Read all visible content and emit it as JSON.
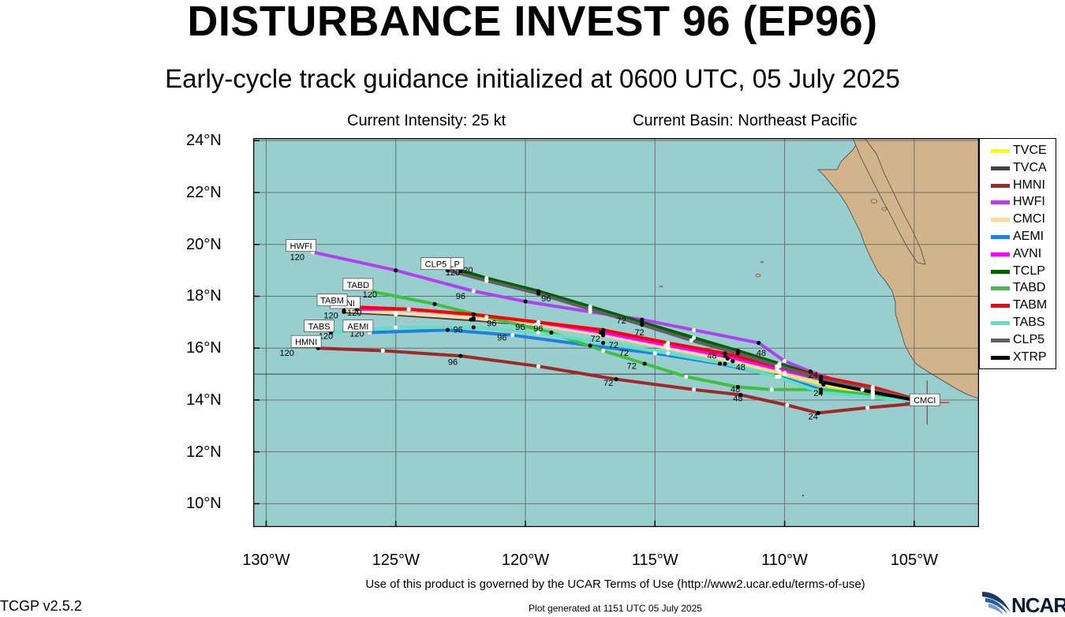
{
  "header": {
    "title": "DISTURBANCE INVEST 96 (EP96)",
    "subtitle": "Early-cycle track guidance initialized at 0600 UTC, 05 July 2025",
    "intensity": "Current Intensity: 25 kt",
    "basin": "Current Basin: Northeast Pacific"
  },
  "axes": {
    "lat_labels": [
      "24°N",
      "22°N",
      "20°N",
      "18°N",
      "16°N",
      "14°N",
      "12°N",
      "10°N"
    ],
    "lat_values": [
      24,
      22,
      20,
      18,
      16,
      14,
      12,
      10
    ],
    "lon_labels": [
      "130°W",
      "125°W",
      "120°W",
      "115°W",
      "110°W",
      "105°W"
    ],
    "lon_values": [
      -130,
      -125,
      -120,
      -115,
      -110,
      -105
    ],
    "lat_range": [
      9.1,
      24.1
    ],
    "lon_range": [
      -130.5,
      -102.5
    ]
  },
  "colors": {
    "ocean": "#99cece",
    "land": "#d1b48c",
    "grid": "#707070"
  },
  "chart_data": {
    "type": "line",
    "x_label": "Longitude",
    "y_label": "Latitude",
    "grid": true,
    "legend_position": "right",
    "initial_position": {
      "lon": -104.5,
      "lat": 13.9,
      "label": "CMCI"
    },
    "series": [
      {
        "name": "TVCE",
        "color": "#ffff00",
        "label": "",
        "points": [
          [
            -104.5,
            13.9
          ],
          [
            -106.6,
            14.2
          ],
          [
            -108.5,
            14.6
          ],
          [
            -110,
            15.0
          ],
          [
            -112,
            15.5
          ],
          [
            -114.5,
            16.0
          ],
          [
            -117,
            16.5
          ],
          [
            -119.5,
            16.9
          ],
          [
            -122,
            17.1
          ],
          [
            -125,
            17.3
          ],
          [
            -127,
            17.4
          ]
        ]
      },
      {
        "name": "TVCA",
        "color": "#404040",
        "label": "",
        "points": [
          [
            -104.5,
            13.9
          ],
          [
            -106.6,
            14.3
          ],
          [
            -108.6,
            14.7
          ],
          [
            -110.2,
            15.1
          ],
          [
            -112.2,
            15.6
          ],
          [
            -114.6,
            16.1
          ],
          [
            -117.1,
            16.6
          ],
          [
            -119.6,
            16.9
          ],
          [
            -122.1,
            17.1
          ],
          [
            -125,
            17.3
          ],
          [
            -127,
            17.4
          ]
        ]
      },
      {
        "name": "HMNI",
        "color": "#a02828",
        "label": "HMNI",
        "points": [
          [
            -104.5,
            13.9
          ],
          [
            -106.8,
            13.7
          ],
          [
            -108.7,
            13.5
          ],
          [
            -109.9,
            13.8
          ],
          [
            -111.7,
            14.2
          ],
          [
            -113.5,
            14.4
          ],
          [
            -116.5,
            14.8
          ],
          [
            -119.5,
            15.3
          ],
          [
            -122.5,
            15.7
          ],
          [
            -125.5,
            15.9
          ],
          [
            -128,
            16.0
          ]
        ]
      },
      {
        "name": "HWFI",
        "color": "#b040f0",
        "label": "HWFI",
        "points": [
          [
            -104.5,
            13.9
          ],
          [
            -107,
            14.4
          ],
          [
            -109,
            15.1
          ],
          [
            -110,
            15.5
          ],
          [
            -111,
            16.2
          ],
          [
            -113.5,
            16.7
          ],
          [
            -115.5,
            17.1
          ],
          [
            -117.5,
            17.4
          ],
          [
            -120,
            17.8
          ],
          [
            -122,
            18.2
          ],
          [
            -125,
            19.0
          ],
          [
            -128.2,
            19.7
          ]
        ]
      },
      {
        "name": "CMCI",
        "color": "#ffd8a8",
        "label": "",
        "points": [
          [
            -104.5,
            13.9
          ],
          [
            -106.6,
            14.25
          ],
          [
            -108.5,
            14.65
          ],
          [
            -110,
            15.05
          ],
          [
            -112,
            15.5
          ],
          [
            -114.5,
            16.0
          ],
          [
            -117,
            16.5
          ],
          [
            -119.5,
            16.9
          ],
          [
            -122,
            17.15
          ],
          [
            -125,
            17.35
          ],
          [
            -127,
            17.45
          ]
        ]
      },
      {
        "name": "AEMI",
        "color": "#2080e0",
        "label": "AEMI",
        "points": [
          [
            -104.5,
            13.9
          ],
          [
            -106.6,
            14.1
          ],
          [
            -108.6,
            14.4
          ],
          [
            -110.2,
            14.9
          ],
          [
            -112.5,
            15.4
          ],
          [
            -115,
            15.8
          ],
          [
            -117.5,
            16.1
          ],
          [
            -120.5,
            16.5
          ],
          [
            -123,
            16.7
          ],
          [
            -126,
            16.6
          ]
        ]
      },
      {
        "name": "AVNI",
        "color": "#ff00ff",
        "label": "AVNI",
        "points": [
          [
            -104.5,
            13.9
          ],
          [
            -106.6,
            14.3
          ],
          [
            -108.6,
            14.8
          ],
          [
            -110.3,
            15.2
          ],
          [
            -112.3,
            15.7
          ],
          [
            -114.5,
            16.1
          ],
          [
            -117,
            16.6
          ],
          [
            -119.5,
            17.0
          ],
          [
            -122,
            17.3
          ],
          [
            -124.5,
            17.5
          ],
          [
            -126.5,
            17.5
          ]
        ]
      },
      {
        "name": "TCLP",
        "color": "#006000",
        "label": "TCLP",
        "points": [
          [
            -104.5,
            13.9
          ],
          [
            -106.6,
            14.4
          ],
          [
            -108.6,
            14.9
          ],
          [
            -110.2,
            15.4
          ],
          [
            -111.8,
            15.9
          ],
          [
            -113.5,
            16.4
          ],
          [
            -115.5,
            17.0
          ],
          [
            -117.5,
            17.6
          ],
          [
            -119.5,
            18.2
          ],
          [
            -121.5,
            18.7
          ],
          [
            -122.5,
            19.0
          ]
        ]
      },
      {
        "name": "TABD",
        "color": "#40c040",
        "label": "TABD",
        "points": [
          [
            -104.5,
            13.9
          ],
          [
            -106.6,
            14.2
          ],
          [
            -108.6,
            14.4
          ],
          [
            -110.5,
            14.4
          ],
          [
            -111.8,
            14.5
          ],
          [
            -113.8,
            14.9
          ],
          [
            -115.4,
            15.4
          ],
          [
            -117,
            15.9
          ],
          [
            -119,
            16.6
          ],
          [
            -121.5,
            17.2
          ],
          [
            -123.5,
            17.7
          ],
          [
            -126,
            18.2
          ]
        ]
      },
      {
        "name": "TABM",
        "color": "#ff0000",
        "label": "TABM",
        "points": [
          [
            -104.5,
            13.9
          ],
          [
            -106.6,
            14.5
          ],
          [
            -108.6,
            14.9
          ],
          [
            -110.3,
            15.3
          ],
          [
            -112.3,
            15.8
          ],
          [
            -114.5,
            16.2
          ],
          [
            -117,
            16.7
          ],
          [
            -119.5,
            17.0
          ],
          [
            -122,
            17.3
          ],
          [
            -124.5,
            17.5
          ],
          [
            -127,
            17.6
          ]
        ]
      },
      {
        "name": "TABS",
        "color": "#60e0c0",
        "label": "TABS",
        "points": [
          [
            -104.5,
            13.9
          ],
          [
            -106.6,
            14.1
          ],
          [
            -108.6,
            14.3
          ],
          [
            -110.3,
            14.9
          ],
          [
            -112.3,
            15.4
          ],
          [
            -114.5,
            15.8
          ],
          [
            -117,
            16.2
          ],
          [
            -119.5,
            16.6
          ],
          [
            -122,
            16.8
          ],
          [
            -125,
            16.8
          ],
          [
            -127.5,
            16.6
          ]
        ]
      },
      {
        "name": "CLP5",
        "color": "#606060",
        "label": "CLP5",
        "points": [
          [
            -104.5,
            13.9
          ],
          [
            -106.6,
            14.4
          ],
          [
            -108.6,
            14.8
          ],
          [
            -110.2,
            15.3
          ],
          [
            -111.8,
            15.8
          ],
          [
            -113.6,
            16.3
          ],
          [
            -115.5,
            16.9
          ],
          [
            -117.5,
            17.5
          ],
          [
            -119.5,
            18.1
          ],
          [
            -121.5,
            18.6
          ],
          [
            -123,
            19.0
          ]
        ]
      },
      {
        "name": "XTRP",
        "color": "#000000",
        "label": "",
        "points": [
          [
            -104.5,
            13.9
          ],
          [
            -106.6,
            14.3
          ],
          [
            -108.6,
            14.7
          ]
        ]
      }
    ],
    "forecast_hour_labels": [
      {
        "text": "24",
        "lon": -108.9,
        "lat": 13.25
      },
      {
        "text": "24",
        "lon": -108.9,
        "lat": 14.85
      },
      {
        "text": "24",
        "lon": -108.7,
        "lat": 14.15
      },
      {
        "text": "48",
        "lon": -111.8,
        "lat": 13.95
      },
      {
        "text": "48",
        "lon": -111.9,
        "lat": 14.3
      },
      {
        "text": "48",
        "lon": -112.8,
        "lat": 15.6
      },
      {
        "text": "48",
        "lon": -111.7,
        "lat": 15.15
      },
      {
        "text": "48",
        "lon": -110.9,
        "lat": 15.7
      },
      {
        "text": "72",
        "lon": -116.8,
        "lat": 14.55
      },
      {
        "text": "72",
        "lon": -115.9,
        "lat": 15.2
      },
      {
        "text": "72",
        "lon": -116.2,
        "lat": 15.7
      },
      {
        "text": "72",
        "lon": -116.6,
        "lat": 16.0
      },
      {
        "text": "72",
        "lon": -117.3,
        "lat": 16.25
      },
      {
        "text": "72",
        "lon": -116.3,
        "lat": 16.95
      },
      {
        "text": "72",
        "lon": -115.6,
        "lat": 16.5
      },
      {
        "text": "96",
        "lon": -122.8,
        "lat": 15.35
      },
      {
        "text": "96",
        "lon": -120.9,
        "lat": 16.3
      },
      {
        "text": "96",
        "lon": -122.6,
        "lat": 16.6
      },
      {
        "text": "96",
        "lon": -120.2,
        "lat": 16.7
      },
      {
        "text": "96",
        "lon": -121.3,
        "lat": 16.85
      },
      {
        "text": "96",
        "lon": -119.5,
        "lat": 16.65
      },
      {
        "text": "96",
        "lon": -122.5,
        "lat": 17.9
      },
      {
        "text": "96",
        "lon": -119.2,
        "lat": 17.8
      },
      {
        "text": "120",
        "lon": -129.2,
        "lat": 15.7
      },
      {
        "text": "120",
        "lon": -127.7,
        "lat": 16.35
      },
      {
        "text": "120",
        "lon": -126.5,
        "lat": 16.45
      },
      {
        "text": "120",
        "lon": -127.5,
        "lat": 17.15
      },
      {
        "text": "120",
        "lon": -126.6,
        "lat": 17.25
      },
      {
        "text": "120",
        "lon": -126.0,
        "lat": 17.95
      },
      {
        "text": "120",
        "lon": -128.8,
        "lat": 19.4
      },
      {
        "text": "120",
        "lon": -122.8,
        "lat": 18.8
      },
      {
        "text": "120",
        "lon": -122.3,
        "lat": 18.9
      }
    ]
  },
  "legend": {
    "items": [
      {
        "label": "TVCE",
        "color": "#ffff00"
      },
      {
        "label": "TVCA",
        "color": "#404040"
      },
      {
        "label": "HMNI",
        "color": "#a02828"
      },
      {
        "label": "HWFI",
        "color": "#b040f0"
      },
      {
        "label": "CMCI",
        "color": "#ffd8a8"
      },
      {
        "label": "AEMI",
        "color": "#2080e0"
      },
      {
        "label": "AVNI",
        "color": "#ff00ff"
      },
      {
        "label": "TCLP",
        "color": "#006000"
      },
      {
        "label": "TABD",
        "color": "#40c040"
      },
      {
        "label": "TABM",
        "color": "#ff0000"
      },
      {
        "label": "TABS",
        "color": "#60e0c0"
      },
      {
        "label": "CLP5",
        "color": "#606060"
      },
      {
        "label": "XTRP",
        "color": "#000000"
      }
    ]
  },
  "footer": {
    "terms": "Use of this product is governed by the UCAR Terms of Use (http://www2.ucar.edu/terms-of-use)",
    "version": "TCGP v2.5.2",
    "generated": "Plot generated at 1151 UTC   05 July 2025",
    "logo_text": "NCAR",
    "logo_icon": "ncar-swoosh-icon"
  }
}
